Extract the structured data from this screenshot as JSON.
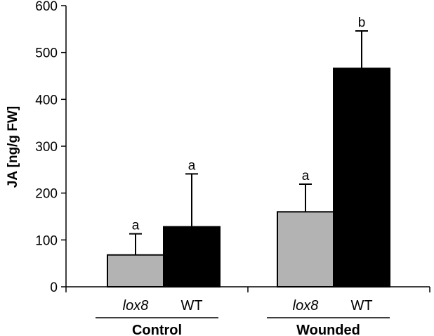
{
  "chart_data": {
    "type": "bar",
    "ylabel": "JA [ng/g FW]",
    "ylim": [
      0,
      600
    ],
    "yticks": [
      0,
      100,
      200,
      300,
      400,
      500,
      600
    ],
    "groups": [
      {
        "label": "Control",
        "bars": [
          {
            "category": "lox8",
            "value": 68,
            "error": 45,
            "significance": "a",
            "color": "#b3b3b3"
          },
          {
            "category": "WT",
            "value": 128,
            "error": 113,
            "significance": "a",
            "color": "#000000"
          }
        ]
      },
      {
        "label": "Wounded",
        "bars": [
          {
            "category": "lox8",
            "value": 160,
            "error": 59,
            "significance": "a",
            "color": "#b3b3b3"
          },
          {
            "category": "WT",
            "value": 466,
            "error": 80,
            "significance": "b",
            "color": "#000000"
          }
        ]
      }
    ],
    "grid": false,
    "legend": "none"
  }
}
